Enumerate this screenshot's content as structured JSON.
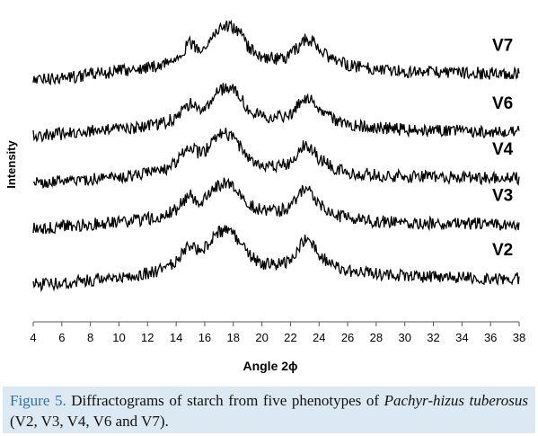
{
  "chart_data": {
    "type": "line",
    "xlabel": "Angle 2ϕ",
    "ylabel": "Intensity",
    "xlim": [
      4,
      38
    ],
    "x_ticks": [
      4,
      6,
      8,
      10,
      12,
      14,
      16,
      18,
      20,
      22,
      24,
      26,
      28,
      30,
      32,
      34,
      36,
      38
    ],
    "y_ticks_shown": false,
    "grid": false,
    "series_label_placement": "right, stacked offset",
    "series": [
      {
        "name": "V7",
        "color": "#000000",
        "x": [
          4,
          6,
          8,
          10,
          12,
          13,
          14,
          14.5,
          15,
          15.5,
          16,
          16.5,
          17,
          17.5,
          18,
          18.5,
          19,
          20,
          21,
          22,
          22.5,
          23,
          23.5,
          24,
          25,
          26,
          28,
          30,
          32,
          34,
          36,
          38
        ],
        "y": [
          0.05,
          0.08,
          0.14,
          0.2,
          0.26,
          0.31,
          0.42,
          0.56,
          0.68,
          0.58,
          0.62,
          0.78,
          0.92,
          0.97,
          0.95,
          0.84,
          0.62,
          0.44,
          0.41,
          0.46,
          0.6,
          0.75,
          0.72,
          0.55,
          0.38,
          0.3,
          0.24,
          0.2,
          0.18,
          0.17,
          0.16,
          0.15
        ]
      },
      {
        "name": "V6",
        "color": "#000000",
        "x": [
          4,
          6,
          8,
          10,
          12,
          13,
          14,
          14.5,
          15,
          15.5,
          16,
          16.5,
          17,
          17.5,
          18,
          18.5,
          19,
          20,
          21,
          22,
          22.5,
          23,
          23.5,
          24,
          25,
          26,
          28,
          30,
          32,
          34,
          36,
          38
        ],
        "y": [
          0.02,
          0.05,
          0.09,
          0.13,
          0.18,
          0.22,
          0.34,
          0.48,
          0.58,
          0.46,
          0.5,
          0.64,
          0.78,
          0.84,
          0.8,
          0.66,
          0.48,
          0.34,
          0.33,
          0.38,
          0.55,
          0.68,
          0.62,
          0.45,
          0.3,
          0.22,
          0.15,
          0.12,
          0.11,
          0.1,
          0.09,
          0.08
        ]
      },
      {
        "name": "V4",
        "color": "#000000",
        "x": [
          4,
          6,
          8,
          10,
          12,
          13,
          14,
          14.5,
          15,
          15.5,
          16,
          16.5,
          17,
          17.5,
          18,
          18.5,
          19,
          20,
          21,
          22,
          22.5,
          23,
          23.5,
          24,
          25,
          26,
          28,
          30,
          32,
          34,
          36,
          38
        ],
        "y": [
          0.04,
          0.07,
          0.11,
          0.15,
          0.2,
          0.25,
          0.38,
          0.55,
          0.7,
          0.55,
          0.58,
          0.72,
          0.86,
          0.88,
          0.82,
          0.66,
          0.48,
          0.34,
          0.33,
          0.38,
          0.56,
          0.7,
          0.63,
          0.45,
          0.3,
          0.22,
          0.17,
          0.15,
          0.14,
          0.13,
          0.12,
          0.12
        ]
      },
      {
        "name": "V3",
        "color": "#000000",
        "x": [
          4,
          6,
          8,
          10,
          12,
          13,
          14,
          14.5,
          15,
          15.5,
          16,
          16.5,
          17,
          17.5,
          18,
          18.5,
          19,
          20,
          21,
          22,
          22.5,
          23,
          23.5,
          24,
          25,
          26,
          28,
          30,
          32,
          34,
          36,
          38
        ],
        "y": [
          0.03,
          0.06,
          0.1,
          0.14,
          0.19,
          0.23,
          0.35,
          0.5,
          0.62,
          0.48,
          0.52,
          0.66,
          0.78,
          0.8,
          0.76,
          0.62,
          0.46,
          0.33,
          0.32,
          0.38,
          0.58,
          0.74,
          0.64,
          0.44,
          0.28,
          0.2,
          0.15,
          0.13,
          0.12,
          0.11,
          0.1,
          0.1
        ]
      },
      {
        "name": "V2",
        "color": "#000000",
        "x": [
          4,
          6,
          8,
          10,
          12,
          13,
          14,
          14.5,
          15,
          15.5,
          16,
          16.5,
          17,
          17.5,
          18,
          18.5,
          19,
          20,
          21,
          22,
          22.5,
          23,
          23.5,
          24,
          25,
          26,
          28,
          30,
          32,
          34,
          36,
          38
        ],
        "y": [
          0.02,
          0.05,
          0.1,
          0.15,
          0.22,
          0.28,
          0.42,
          0.58,
          0.72,
          0.6,
          0.66,
          0.8,
          0.92,
          0.96,
          0.9,
          0.74,
          0.54,
          0.38,
          0.36,
          0.42,
          0.62,
          0.8,
          0.72,
          0.52,
          0.34,
          0.26,
          0.2,
          0.17,
          0.15,
          0.14,
          0.13,
          0.12
        ]
      }
    ]
  },
  "caption": {
    "figure_label": "Figure 5.",
    "text_part1": " Diffractograms of starch from five phenotypes of ",
    "italic_part1": "Pachyr-hizus tuberosus",
    "text_part2": " (V2, V3, V4, V6 and V7)."
  }
}
